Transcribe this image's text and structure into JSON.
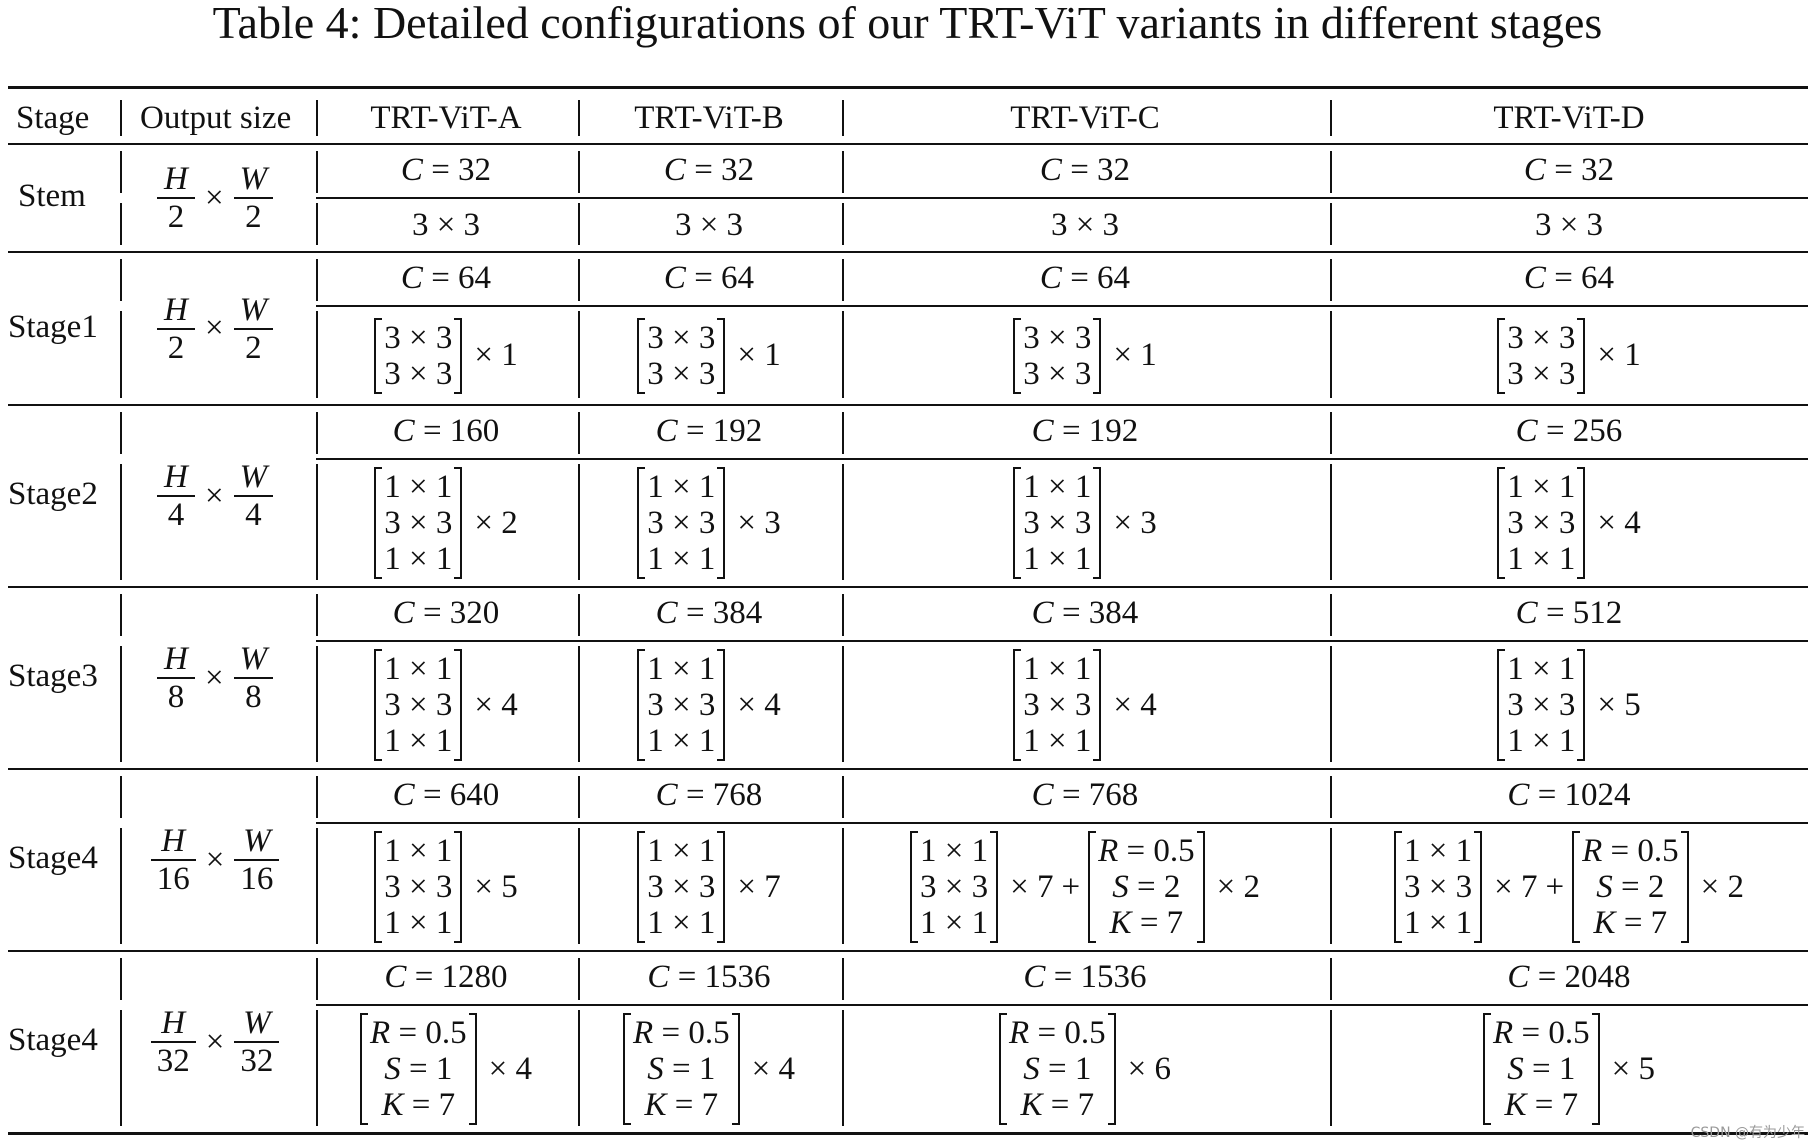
{
  "caption": "Table 4: Detailed configurations of our TRT-ViT variants in different stages",
  "headers": {
    "stage": "Stage",
    "output_size": "Output size",
    "a": "TRT-ViT-A",
    "b": "TRT-ViT-B",
    "c": "TRT-ViT-C",
    "d": "TRT-ViT-D"
  },
  "rows": [
    {
      "stage": "Stem",
      "h": "H",
      "w": "W",
      "den": "2",
      "channels": [
        "32",
        "32",
        "32",
        "32"
      ],
      "kernel": "3 × 3"
    },
    {
      "stage": "Stage1",
      "h": "H",
      "w": "W",
      "den": "2",
      "channels": [
        "64",
        "64",
        "64",
        "64"
      ],
      "rep": [
        "1",
        "1",
        "1",
        "1"
      ]
    },
    {
      "stage": "Stage2",
      "h": "H",
      "w": "W",
      "den": "4",
      "channels": [
        "160",
        "192",
        "192",
        "256"
      ],
      "rep": [
        "2",
        "3",
        "3",
        "4"
      ]
    },
    {
      "stage": "Stage3",
      "h": "H",
      "w": "W",
      "den": "8",
      "channels": [
        "320",
        "384",
        "384",
        "512"
      ],
      "rep": [
        "4",
        "4",
        "4",
        "5"
      ]
    },
    {
      "stage": "Stage4",
      "h": "H",
      "w": "W",
      "den": "16",
      "channels": [
        "640",
        "768",
        "768",
        "1024"
      ],
      "rep": [
        "5",
        "7",
        "7",
        "7"
      ],
      "attn_rep": [
        "",
        "",
        "2",
        "2"
      ],
      "attn": {
        "r": "R = 0.5",
        "s": "S = 2",
        "k": "K = 7"
      }
    },
    {
      "stage": "Stage4",
      "h": "H",
      "w": "W",
      "den": "32",
      "channels": [
        "1280",
        "1536",
        "1536",
        "2048"
      ],
      "rep": [
        "4",
        "4",
        "6",
        "5"
      ],
      "attn": {
        "r": "R = 0.5",
        "s": "S = 1",
        "k": "K = 7"
      }
    }
  ],
  "symbols": {
    "c": "C",
    "eq": " = ",
    "times": "×",
    "plus": "+",
    "k11": "1 × 1",
    "k33": "3 × 3"
  },
  "watermark": "CSDN @有为少年"
}
